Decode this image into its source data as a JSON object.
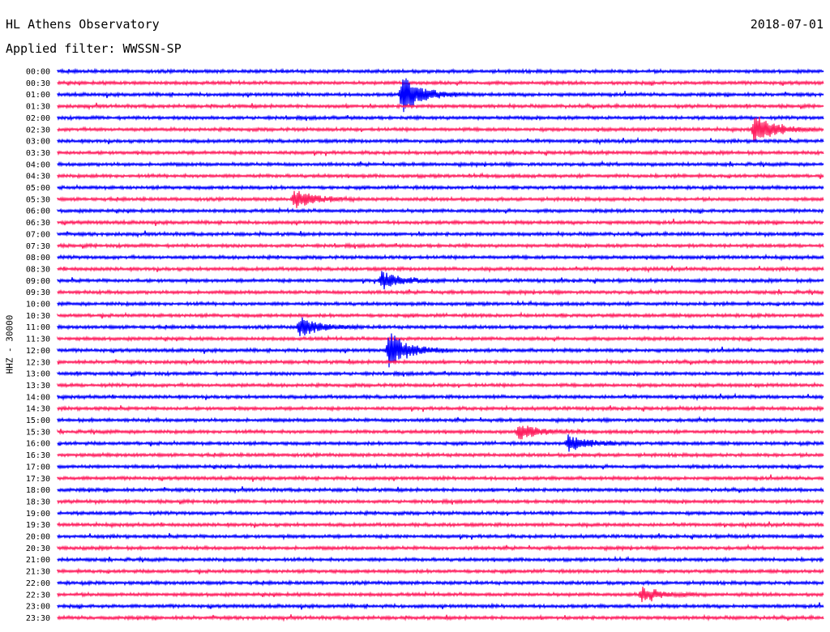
{
  "header": {
    "title": "HL Athens Observatory",
    "date": "2018-07-01",
    "filter_label": "Applied filter: WWSSN-SP",
    "channel_label": "HHZ - 30000"
  },
  "chart_data": {
    "type": "line",
    "title": "HL Athens Observatory",
    "subtitle": "Applied filter: WWSSN-SP",
    "date": "2018-07-01",
    "ylabel": "HHZ - 30000",
    "xlabel": "",
    "grid": false,
    "trace_interval_minutes": 30,
    "trace_colors": [
      "#0000ff",
      "#ff2060"
    ],
    "line_labels": [
      "00:00",
      "00:30",
      "01:00",
      "01:30",
      "02:00",
      "02:30",
      "03:00",
      "03:30",
      "04:00",
      "04:30",
      "05:00",
      "05:30",
      "06:00",
      "06:30",
      "07:00",
      "07:30",
      "08:00",
      "08:30",
      "09:00",
      "09:30",
      "10:00",
      "10:30",
      "11:00",
      "11:30",
      "12:00",
      "12:30",
      "13:00",
      "13:30",
      "14:00",
      "14:30",
      "15:00",
      "15:30",
      "16:00",
      "16:30",
      "17:00",
      "17:30",
      "18:00",
      "18:30",
      "19:00",
      "19:30",
      "20:00",
      "20:30",
      "21:00",
      "21:30",
      "22:00",
      "22:30",
      "23:00",
      "23:30"
    ],
    "notable_events": [
      {
        "line": "01:00",
        "minute": 13.5,
        "relative_amplitude": 2.6
      },
      {
        "line": "02:30",
        "minute": 27.3,
        "relative_amplitude": 2.0
      },
      {
        "line": "05:30",
        "minute": 9.3,
        "relative_amplitude": 1.3
      },
      {
        "line": "09:00",
        "minute": 12.7,
        "relative_amplitude": 1.2
      },
      {
        "line": "11:00",
        "minute": 9.5,
        "relative_amplitude": 1.3
      },
      {
        "line": "12:00",
        "minute": 13.0,
        "relative_amplitude": 2.4
      },
      {
        "line": "15:30",
        "minute": 18.1,
        "relative_amplitude": 1.0
      },
      {
        "line": "16:00",
        "minute": 20.0,
        "relative_amplitude": 1.1
      },
      {
        "line": "22:30",
        "minute": 22.9,
        "relative_amplitude": 1.0
      }
    ]
  }
}
